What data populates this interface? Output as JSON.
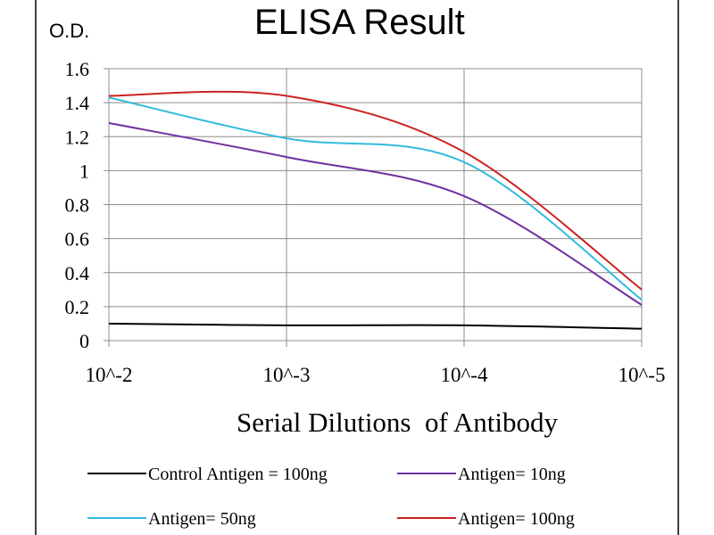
{
  "chart_data": {
    "type": "line",
    "title": "ELISA Result",
    "ylabel": "O.D.",
    "xlabel": "Serial Dilutions  of Antibody",
    "categories": [
      "10^-2",
      "10^-3",
      "10^-4",
      "10^-5"
    ],
    "y_ticks": [
      "0",
      "0.2",
      "0.4",
      "0.6",
      "0.8",
      "1",
      "1.2",
      "1.4",
      "1.6"
    ],
    "ylim": [
      0,
      1.6
    ],
    "grid": true,
    "legend_position": "bottom",
    "series": [
      {
        "name": "Control Antigen = 100ng",
        "color": "#000000",
        "values": [
          0.1,
          0.09,
          0.09,
          0.07
        ]
      },
      {
        "name": "Antigen= 10ng",
        "color": "#7030a0",
        "values": [
          1.28,
          1.08,
          0.85,
          0.21
        ]
      },
      {
        "name": "Antigen= 50ng",
        "color": "#33bbdd",
        "values": [
          1.43,
          1.19,
          1.05,
          0.24
        ]
      },
      {
        "name": "Antigen= 100ng",
        "color": "#cc2222",
        "values": [
          1.44,
          1.44,
          1.11,
          0.3
        ]
      }
    ]
  }
}
